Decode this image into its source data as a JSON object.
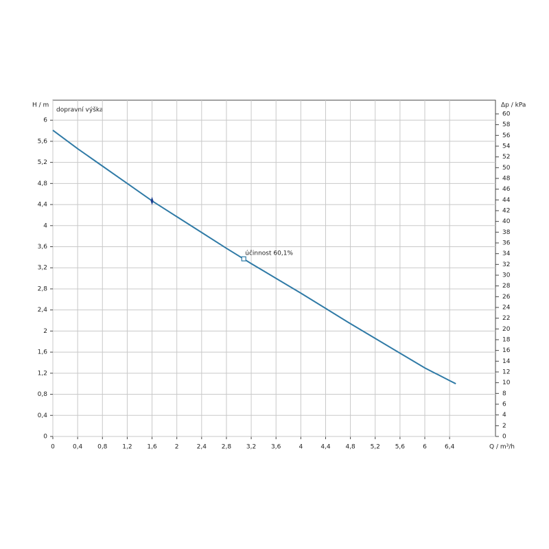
{
  "chart_data": {
    "type": "line",
    "y_label": "H / m",
    "y2_label": "Δp / kPa",
    "x_label": "Q / m³/h",
    "series_label": "dopravní výška",
    "x": [
      0,
      0.4,
      0.8,
      1.2,
      1.6,
      2.0,
      2.4,
      2.8,
      3.2,
      3.6,
      4.0,
      4.4,
      4.8,
      5.2,
      5.6,
      6.0,
      6.4,
      6.5
    ],
    "series": [
      {
        "color": "#2f7aa6",
        "values": [
          5.81,
          5.46,
          5.13,
          4.8,
          4.47,
          4.17,
          3.87,
          3.57,
          3.28,
          3.0,
          2.72,
          2.43,
          2.14,
          1.86,
          1.58,
          1.3,
          1.06,
          1.0
        ]
      }
    ],
    "operating_point": {
      "x": 1.6,
      "y": 4.47,
      "color": "#1f3f8f"
    },
    "efficiency_point": {
      "x": 3.08,
      "y": 3.37,
      "label": "účinnost  60,1%",
      "color": "#2f7aa6"
    },
    "xlim": [
      0,
      7.14
    ],
    "ylim": [
      0,
      6.38
    ],
    "y2lim": [
      0,
      62.55
    ],
    "xticks": [
      0,
      {
        "value": 0.4,
        "label": "0,4"
      },
      {
        "value": 0.8,
        "label": "0,8"
      },
      {
        "value": 1.2,
        "label": "1,2"
      },
      {
        "value": 1.6,
        "label": "1,6"
      },
      2,
      {
        "value": 2.4,
        "label": "2,4"
      },
      {
        "value": 2.8,
        "label": "2,8"
      },
      {
        "value": 3.2,
        "label": "3,2"
      },
      {
        "value": 3.6,
        "label": "3,6"
      },
      4,
      {
        "value": 4.4,
        "label": "4,4"
      },
      {
        "value": 4.8,
        "label": "4,8"
      },
      {
        "value": 5.2,
        "label": "5,2"
      },
      {
        "value": 5.6,
        "label": "5,6"
      },
      6,
      {
        "value": 6.4,
        "label": "6,4"
      }
    ],
    "yticks": [
      0,
      {
        "value": 0.4,
        "label": "0,4"
      },
      {
        "value": 0.8,
        "label": "0,8"
      },
      {
        "value": 1.2,
        "label": "1,2"
      },
      {
        "value": 1.6,
        "label": "1,6"
      },
      2,
      {
        "value": 2.4,
        "label": "2,4"
      },
      {
        "value": 2.8,
        "label": "2,8"
      },
      {
        "value": 3.2,
        "label": "3,2"
      },
      {
        "value": 3.6,
        "label": "3,6"
      },
      4,
      {
        "value": 4.4,
        "label": "4,4"
      },
      {
        "value": 4.8,
        "label": "4,8"
      },
      {
        "value": 5.2,
        "label": "5,2"
      },
      {
        "value": 5.6,
        "label": "5,6"
      },
      6
    ],
    "y2ticks": [
      0,
      2,
      4,
      6,
      8,
      10,
      12,
      14,
      16,
      18,
      20,
      22,
      24,
      26,
      28,
      30,
      32,
      34,
      36,
      38,
      40,
      42,
      44,
      46,
      48,
      50,
      52,
      54,
      56,
      58,
      60
    ],
    "grid": true
  }
}
